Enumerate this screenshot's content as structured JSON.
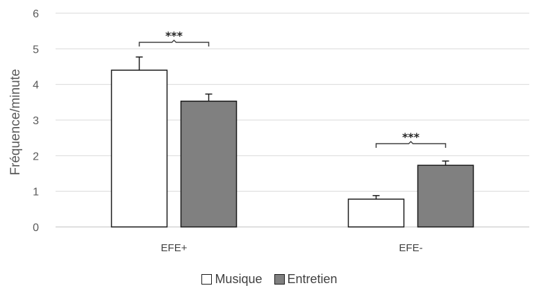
{
  "chart_data": {
    "type": "bar",
    "categories": [
      "EFE+",
      "EFE-"
    ],
    "series": [
      {
        "name": "Musique",
        "values": [
          4.4,
          0.78
        ],
        "errors": [
          0.37,
          0.1
        ],
        "color": "#ffffff"
      },
      {
        "name": "Entretien",
        "values": [
          3.53,
          1.73
        ],
        "errors": [
          0.2,
          0.12
        ],
        "color": "#808080"
      }
    ],
    "title": "",
    "xlabel": "",
    "ylabel": "Fréquence/minute",
    "ylim": [
      0,
      6
    ],
    "yticks": [
      "0",
      "1",
      "2",
      "3",
      "4",
      "5",
      "6"
    ],
    "grid": true,
    "legend_position": "bottom",
    "significance": [
      "***",
      "***"
    ]
  }
}
